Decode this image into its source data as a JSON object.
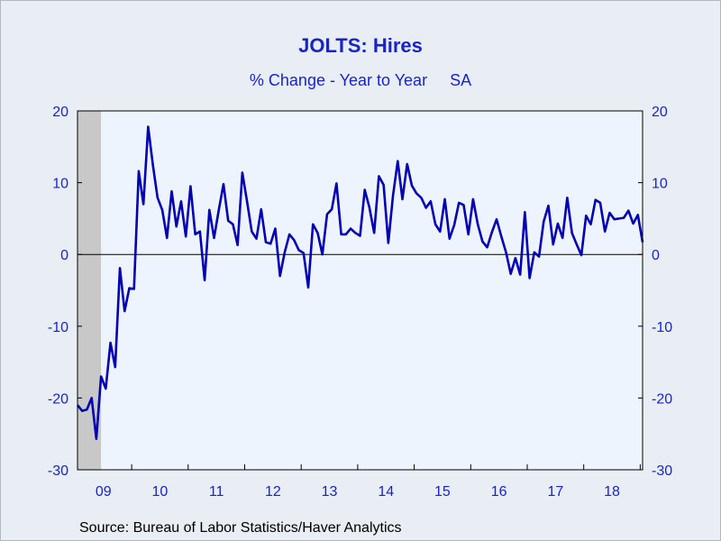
{
  "chart_data": {
    "type": "line",
    "title": "JOLTS: Hires",
    "subtitle": "% Change - Year to Year     SA",
    "source": "Source:  Bureau of Labor Statistics/Haver Analytics",
    "ylim": [
      -30,
      20
    ],
    "yticks": [
      20,
      10,
      0,
      -10,
      -20,
      -30
    ],
    "ytick_labels": [
      "20",
      "10",
      "0",
      "-10",
      "-20",
      "-30"
    ],
    "x_year_labels": [
      "09",
      "10",
      "11",
      "12",
      "13",
      "14",
      "15",
      "16",
      "17",
      "18"
    ],
    "x_start": "2009-01",
    "recession_shading": {
      "start": "2009-01",
      "end": "2009-06"
    },
    "zero_line": true,
    "colors": {
      "line": "#0000b4",
      "text": "#1a23c8",
      "plot_bg": "#eef4fd",
      "recession": "#c8c8c8"
    },
    "series": [
      {
        "name": "Hires % Change Y/Y",
        "values": [
          -21.0,
          -21.8,
          -21.6,
          -20.0,
          -25.7,
          -17.0,
          -18.7,
          -12.3,
          -15.7,
          -1.9,
          -7.9,
          -4.7,
          -4.8,
          11.6,
          7.0,
          17.8,
          12.5,
          7.9,
          6.2,
          2.3,
          8.8,
          3.9,
          7.4,
          2.5,
          9.5,
          2.8,
          3.2,
          -3.6,
          6.2,
          2.3,
          6.2,
          9.8,
          4.7,
          4.2,
          1.3,
          11.4,
          7.4,
          3.2,
          2.2,
          6.3,
          1.7,
          1.5,
          3.6,
          -3.0,
          0.3,
          2.8,
          2.0,
          0.6,
          0.2,
          -4.6,
          4.2,
          3.0,
          0.0,
          5.6,
          6.3,
          9.9,
          2.8,
          2.8,
          3.6,
          3.0,
          2.6,
          9.0,
          6.5,
          3.0,
          10.9,
          9.7,
          1.6,
          8.2,
          13.0,
          7.7,
          12.6,
          9.6,
          8.5,
          7.9,
          6.5,
          7.4,
          4.2,
          3.2,
          7.7,
          2.2,
          4.1,
          7.2,
          6.9,
          2.8,
          7.7,
          4.2,
          1.8,
          1.0,
          3.1,
          4.9,
          2.5,
          0.3,
          -2.7,
          -0.5,
          -2.8,
          5.9,
          -3.3,
          0.3,
          -0.3,
          4.6,
          6.8,
          1.4,
          4.3,
          2.3,
          7.9,
          3.0,
          1.4,
          -0.1,
          5.4,
          4.2,
          7.6,
          7.2,
          3.2,
          5.8,
          4.9,
          5.0,
          5.1,
          6.1,
          4.3,
          5.5,
          1.7
        ]
      }
    ]
  }
}
